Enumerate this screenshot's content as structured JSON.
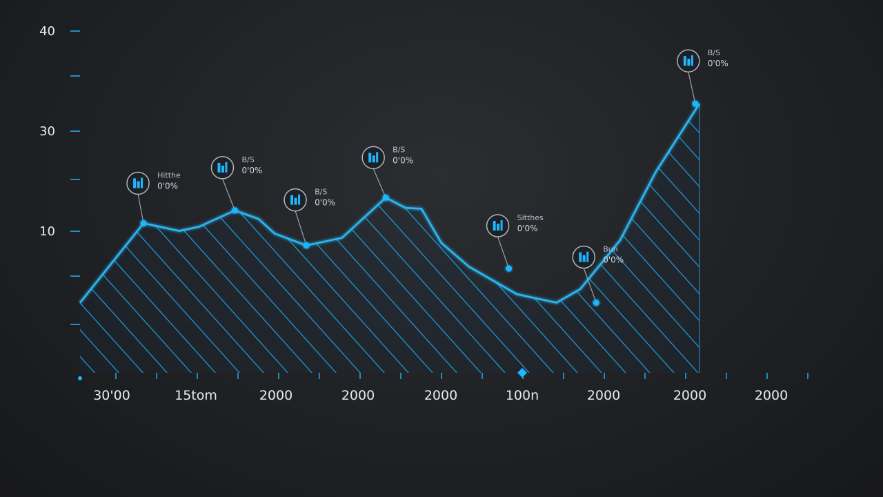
{
  "chart_data": {
    "type": "area",
    "title": "",
    "xlabel": "",
    "ylabel": "",
    "y_ticks": [
      "10",
      "30",
      "40"
    ],
    "x_tick_labels": [
      "30'00",
      "15tom",
      "2000",
      "2000",
      "2000",
      "100n",
      "2000",
      "2000",
      "2000"
    ],
    "series": [
      {
        "values": [
          {
            "x": 0.0,
            "y": 8.2
          },
          {
            "x": 0.8,
            "y": 17.5
          },
          {
            "x": 1.25,
            "y": 16.6
          },
          {
            "x": 1.5,
            "y": 17.1
          },
          {
            "x": 1.95,
            "y": 19.0
          },
          {
            "x": 2.25,
            "y": 18.0
          },
          {
            "x": 2.45,
            "y": 16.3
          },
          {
            "x": 2.85,
            "y": 14.9
          },
          {
            "x": 3.3,
            "y": 15.8
          },
          {
            "x": 3.85,
            "y": 20.5
          },
          {
            "x": 4.1,
            "y": 19.3
          },
          {
            "x": 4.3,
            "y": 19.2
          },
          {
            "x": 4.55,
            "y": 15.2
          },
          {
            "x": 4.9,
            "y": 12.4
          },
          {
            "x": 5.5,
            "y": 9.2
          },
          {
            "x": 6.0,
            "y": 8.2
          },
          {
            "x": 6.3,
            "y": 9.8
          },
          {
            "x": 6.8,
            "y": 15.5
          },
          {
            "x": 7.25,
            "y": 23.5
          },
          {
            "x": 7.8,
            "y": 31.5
          }
        ]
      }
    ],
    "markers": [
      {
        "x": 0.8,
        "y": 17.5,
        "label": "Hitthe",
        "value": "0'0%"
      },
      {
        "x": 1.95,
        "y": 19.0,
        "label": "B/S",
        "value": "0'0%"
      },
      {
        "x": 2.85,
        "y": 14.9,
        "label": "B/S",
        "value": "0'0%"
      },
      {
        "x": 3.85,
        "y": 20.5,
        "label": "B/S",
        "value": "0'0%"
      },
      {
        "x": 5.4,
        "y": 12.2,
        "label": "Sitthes",
        "value": "0'0%"
      },
      {
        "x": 6.5,
        "y": 8.2,
        "label": "Bun",
        "value": "0'0%"
      },
      {
        "x": 8.7,
        "y": 31.5,
        "label": "B/S",
        "value": "0'0%"
      }
    ],
    "grid": false,
    "legend": "none",
    "colors": {
      "accent": "#1fb6ff",
      "line": "#29b8f5",
      "hatch": "#1e9fe0",
      "background": "#1f2124",
      "text": "#e9ecef"
    }
  }
}
